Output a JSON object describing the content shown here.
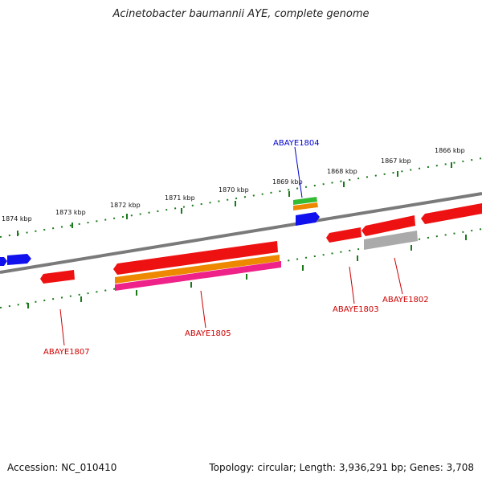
{
  "title": "Acinetobacter baumannii AYE, complete genome",
  "footer": {
    "accession": "Accession: NC_010410",
    "topology": "Topology: circular; Length: 3,936,291 bp; Genes: 3,708"
  },
  "scale_labels": [
    "1874 kbp",
    "1873 kbp",
    "1872 kbp",
    "1871 kbp",
    "1870 kbp",
    "1869 kbp",
    "1868 kbp",
    "1867 kbp",
    "1866 kbp"
  ],
  "gene_labels": {
    "abaye1804": "ABAYE1804",
    "abaye1805": "ABAYE1805",
    "abaye1807": "ABAYE1807",
    "abaye1803": "ABAYE1803",
    "abaye1802": "ABAYE1802"
  },
  "colors": {
    "backbone": "#7a7a7a",
    "tick": "#1a7a1a",
    "gene_red": "#ee1111",
    "gene_blue": "#1111ee",
    "gene_green": "#33bb33",
    "gene_orange": "#ee8800",
    "gene_pink": "#ee2288",
    "gene_gray": "#aaaaaa",
    "label_blue": "#0000cc",
    "label_red": "#cc0000"
  }
}
